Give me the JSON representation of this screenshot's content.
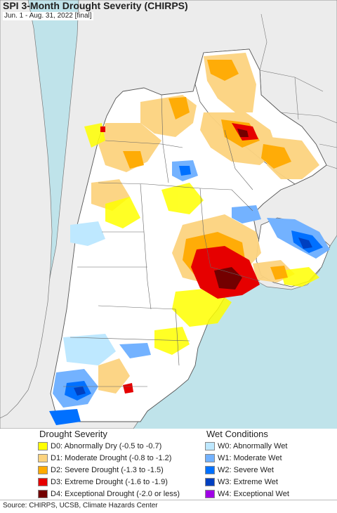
{
  "title": "SPI 3-Month Drought Severity (CHIRPS)",
  "subtitle": "Jun. 1 - Aug. 31, 2022 [final]",
  "legend": {
    "drought_heading": "Drought Severity",
    "drought_items": [
      {
        "label": "D0: Abnormally Dry (-0.5 to -0.7)",
        "color": "#ffff00"
      },
      {
        "label": "D1: Moderate Drought (-0.8 to -1.2)",
        "color": "#fcd37f"
      },
      {
        "label": "D2: Severe Drought (-1.3 to -1.5)",
        "color": "#ffaa00"
      },
      {
        "label": "D3: Extreme Drought (-1.6 to -1.9)",
        "color": "#e60000"
      },
      {
        "label": "D4: Exceptional Drought (-2.0 or less)",
        "color": "#730000"
      }
    ],
    "wet_heading": "Wet Conditions",
    "wet_items": [
      {
        "label": "W0: Abnormally Wet",
        "color": "#bee8ff"
      },
      {
        "label": "W1: Moderate Wet",
        "color": "#73b2ff"
      },
      {
        "label": "W2: Severe Wet",
        "color": "#0070ff"
      },
      {
        "label": "W3: Extreme Wet",
        "color": "#0040c0"
      },
      {
        "label": "W4: Exceptional Wet",
        "color": "#a000e6"
      }
    ]
  },
  "source": "Source: CHIRPS, UCSB, Climate Hazards Center",
  "colors": {
    "ocean": "#bfe3ea",
    "land_outside": "#ececec",
    "land_inside": "#ffffff",
    "border": "#555555"
  }
}
